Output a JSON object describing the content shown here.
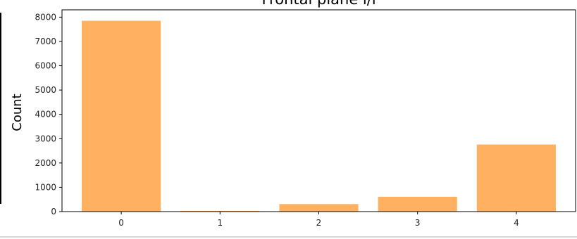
{
  "chart_data": {
    "type": "bar",
    "title": "Frontal plane i/r",
    "xlabel": "",
    "ylabel": "Count",
    "categories": [
      "0",
      "1",
      "2",
      "3",
      "4"
    ],
    "values": [
      7850,
      30,
      310,
      610,
      2760
    ],
    "ylim": [
      0,
      8300
    ],
    "yticks": [
      0,
      1000,
      2000,
      3000,
      4000,
      5000,
      6000,
      7000,
      8000
    ],
    "bar_color": "#ffb061",
    "grid": false,
    "legend": "none"
  }
}
